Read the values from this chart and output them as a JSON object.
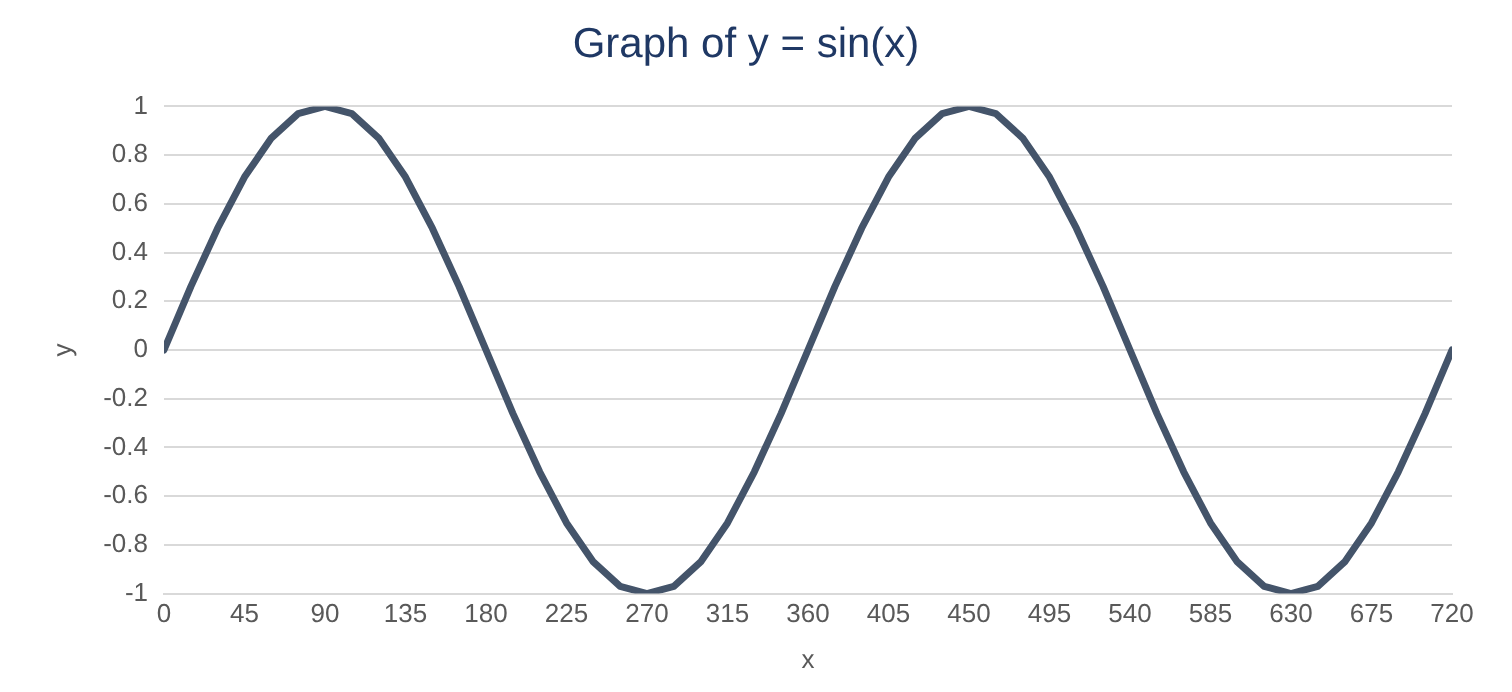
{
  "chart_data": {
    "type": "line",
    "title": "Graph of y = sin(x)",
    "xlabel": "x",
    "ylabel": "y",
    "x": [
      0,
      15,
      30,
      45,
      60,
      75,
      90,
      105,
      120,
      135,
      150,
      165,
      180,
      195,
      210,
      225,
      240,
      255,
      270,
      285,
      300,
      315,
      330,
      345,
      360,
      375,
      390,
      405,
      420,
      435,
      450,
      465,
      480,
      495,
      510,
      525,
      540,
      555,
      570,
      585,
      600,
      615,
      630,
      645,
      660,
      675,
      690,
      705,
      720
    ],
    "series": [
      {
        "color": "#44546a",
        "values": [
          0,
          0.26,
          0.5,
          0.71,
          0.87,
          0.97,
          1,
          0.97,
          0.87,
          0.71,
          0.5,
          0.26,
          0,
          -0.26,
          -0.5,
          -0.71,
          -0.87,
          -0.97,
          -1,
          -0.97,
          -0.87,
          -0.71,
          -0.5,
          -0.26,
          0,
          0.26,
          0.5,
          0.71,
          0.87,
          0.97,
          1,
          0.97,
          0.87,
          0.71,
          0.5,
          0.26,
          0,
          -0.26,
          -0.5,
          -0.71,
          -0.87,
          -0.97,
          -1,
          -0.97,
          -0.87,
          -0.71,
          -0.5,
          -0.26,
          0
        ]
      }
    ],
    "xlim": [
      0,
      720
    ],
    "xticks": [
      0,
      45,
      90,
      135,
      180,
      225,
      270,
      315,
      360,
      405,
      450,
      495,
      540,
      585,
      630,
      675,
      720
    ],
    "ylim": [
      -1,
      1
    ],
    "yticks": [
      -1,
      -0.8,
      -0.6,
      -0.4,
      -0.2,
      0,
      0.2,
      0.4,
      0.6,
      0.8,
      1
    ],
    "grid": "y",
    "legend": false,
    "marker": "none",
    "line_style": "solid"
  }
}
